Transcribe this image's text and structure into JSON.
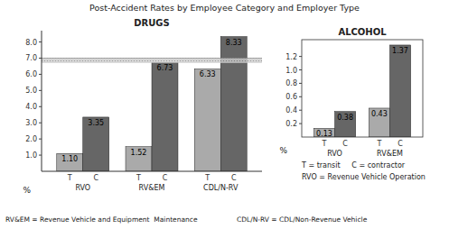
{
  "title": "Post-Accident Rates by Employee Category and Employer Type",
  "annotations": [
    "T = transit     C = contractor",
    "RVO = Revenue Vehicle Operation",
    "RV&EM = Revenue Vehicle and Equipment  Maintenance",
    "CDL/N-RV = CDL/Non-Revenue Vehicle"
  ],
  "chart_data": [
    {
      "type": "bar",
      "title": "DRUGS",
      "y_label": "%",
      "categories": [
        "RVO",
        "RV&EM",
        "CDL/N-RV"
      ],
      "series": [
        {
          "name": "T",
          "color": "#aaaaaa",
          "values": [
            1.1,
            1.52,
            6.33
          ],
          "value_labels": [
            "1.10",
            "1.52",
            "6.33"
          ]
        },
        {
          "name": "C",
          "color": "#666666",
          "values": [
            3.35,
            6.73,
            8.33
          ]
        }
      ],
      "ylim": [
        0,
        8.7
      ],
      "yticks": [
        {
          "value": 1,
          "label": "1.0"
        },
        {
          "value": 2,
          "label": "2.0"
        },
        {
          "value": 3,
          "label": "3.0"
        },
        {
          "value": 4,
          "label": "4.0"
        },
        {
          "value": 5,
          "label": "5.0"
        },
        {
          "value": 6,
          "label": "6.0"
        },
        {
          "value": 7,
          "label": "7.0"
        },
        {
          "value": 8,
          "label": "8.0"
        }
      ],
      "band": [
        6.7,
        7.0
      ],
      "grid": false,
      "data_labels": true
    },
    {
      "type": "bar",
      "title": "ALCOHOL",
      "y_label": "%",
      "categories": [
        "RVO",
        "RV&EM"
      ],
      "series": [
        {
          "name": "T",
          "color": "#aaaaaa",
          "values": [
            0.13,
            0.43
          ]
        },
        {
          "name": "C",
          "color": "#666666",
          "values": [
            0.38,
            1.37
          ]
        }
      ],
      "ylim": [
        0,
        1.45
      ],
      "yticks": [
        0.2,
        0.4,
        0.6,
        0.8,
        {
          "value": 1,
          "label": "1.0"
        },
        1.2
      ],
      "grid": false,
      "data_labels": true
    }
  ]
}
